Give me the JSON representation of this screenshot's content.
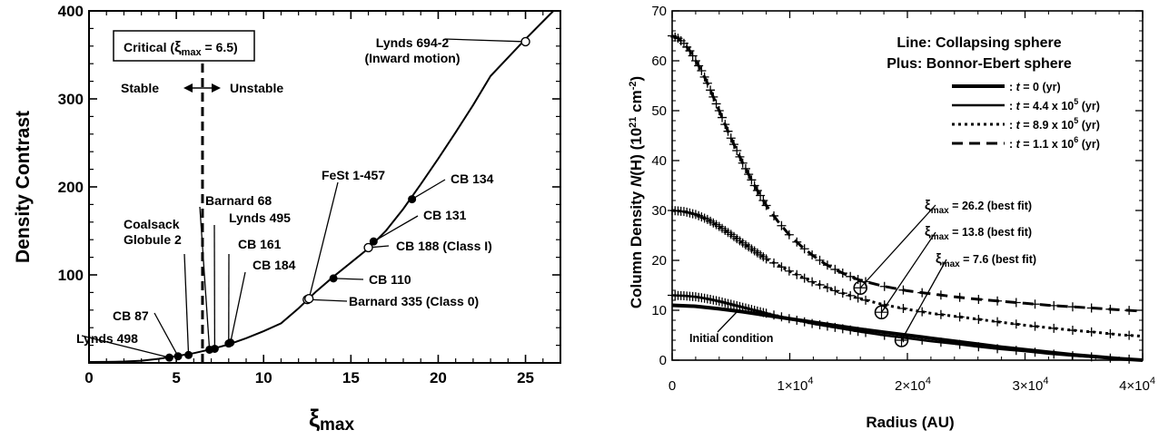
{
  "chart_data": [
    {
      "type": "line",
      "xlabel_main": "ξ",
      "xlabel_sub": "max",
      "ylabel": "Density Contrast",
      "xlim": [
        0,
        27
      ],
      "ylim": [
        0,
        400
      ],
      "xticks": [
        "0",
        "5",
        "10",
        "15",
        "20",
        "25"
      ],
      "yticks": [
        "100",
        "200",
        "300",
        "400"
      ],
      "critical_box": {
        "prefix": "Critical (",
        "xi": "ξ",
        "sub": "max",
        "suffix": "  = 6.5)"
      },
      "critical_x": 6.5,
      "stable_label": "Stable",
      "unstable_label": "Unstable",
      "curve": {
        "x": [
          0,
          1,
          2,
          3,
          4,
          5,
          6,
          7,
          8,
          9,
          10,
          11,
          12,
          13,
          14,
          15,
          16,
          17,
          18,
          19,
          20,
          21,
          22,
          23,
          24,
          25,
          26,
          26.6
        ],
        "y": [
          1,
          1.1,
          1.5,
          2.4,
          4.6,
          7.7,
          11,
          15.5,
          21,
          28,
          36,
          45,
          62,
          81,
          98,
          114,
          130,
          150,
          175,
          203,
          232,
          262,
          293,
          326,
          347,
          368,
          388,
          400
        ]
      },
      "objects": [
        {
          "name": "Lynds 498",
          "x": 4.6,
          "y": 6,
          "marker": "filled",
          "label_lines": [
            "Lynds 498"
          ]
        },
        {
          "name": "CB 87",
          "x": 5.1,
          "y": 7.5,
          "marker": "filled",
          "label_lines": [
            "CB 87"
          ]
        },
        {
          "name": "Coalsack Globule 2",
          "x": 5.7,
          "y": 9,
          "marker": "filled",
          "label_lines": [
            "Coalsack",
            "Globule 2"
          ]
        },
        {
          "name": "Barnard 68",
          "x": 6.9,
          "y": 15,
          "marker": "filled",
          "label_lines": [
            "Barnard 68"
          ]
        },
        {
          "name": "Lynds 495",
          "x": 7.2,
          "y": 16,
          "marker": "filled",
          "label_lines": [
            "Lynds 495"
          ]
        },
        {
          "name": "CB 161",
          "x": 8.0,
          "y": 22,
          "marker": "filled",
          "label_lines": [
            "CB 161"
          ]
        },
        {
          "name": "CB 184",
          "x": 8.1,
          "y": 23,
          "marker": "filled",
          "label_lines": [
            "CB 184"
          ]
        },
        {
          "name": "Barnard 335 (Class 0)",
          "x": 12.5,
          "y": 72,
          "marker": "open",
          "label_lines": [
            "Barnard 335 (Class 0)"
          ]
        },
        {
          "name": "FeSt 1-457",
          "x": 12.6,
          "y": 73,
          "marker": "open",
          "label_lines": [
            "FeSt 1-457"
          ]
        },
        {
          "name": "CB 110",
          "x": 14.0,
          "y": 96,
          "marker": "filled",
          "label_lines": [
            "CB 110"
          ]
        },
        {
          "name": "CB 188 (Class I)",
          "x": 16.0,
          "y": 131,
          "marker": "open",
          "label_lines": [
            "CB 188 (Class I)"
          ]
        },
        {
          "name": "CB 131",
          "x": 16.3,
          "y": 138,
          "marker": "filled",
          "label_lines": [
            "CB 131"
          ]
        },
        {
          "name": "CB 134",
          "x": 18.5,
          "y": 186,
          "marker": "filled",
          "label_lines": [
            "CB 134"
          ]
        },
        {
          "name": "Lynds 694-2 (Inward motion)",
          "x": 25.0,
          "y": 365,
          "marker": "open",
          "label_lines": [
            "Lynds 694-2",
            "(Inward motion)"
          ]
        }
      ]
    },
    {
      "type": "line",
      "xlabel": "Radius (AU)",
      "ylabel_prefix": "Column Density ",
      "ylabel_italic": "N",
      "ylabel_mid": "(H) (10",
      "ylabel_sup1": "21",
      "ylabel_unit": " cm",
      "ylabel_sup2": "-2",
      "ylabel_end": ")",
      "xlim": [
        0,
        40000
      ],
      "ylim": [
        0,
        70
      ],
      "xticks": [
        {
          "value": 0,
          "label": "0",
          "exp": ""
        },
        {
          "value": 10000,
          "label": "1×10",
          "exp": "4"
        },
        {
          "value": 20000,
          "label": "2×10",
          "exp": "4"
        },
        {
          "value": 30000,
          "label": "3×10",
          "exp": "4"
        },
        {
          "value": 40000,
          "label": "4×10",
          "exp": "4"
        }
      ],
      "yticks": [
        "0",
        "10",
        "20",
        "30",
        "40",
        "50",
        "60",
        "70"
      ],
      "legend_line1": "Line: Collapsing sphere",
      "legend_line2": "Plus: Bonnor-Ebert sphere",
      "legend_entries": [
        {
          "style": "solid-thick",
          "colon": ":",
          "t": "t",
          "text": " = 0 (yr)",
          "exp": "",
          "tail": ""
        },
        {
          "style": "solid",
          "colon": ":",
          "t": "t",
          "text": " = 4.4 x 10",
          "exp": "5",
          "tail": " (yr)"
        },
        {
          "style": "dotted",
          "colon": ":",
          "t": "t",
          "text": " = 8.9 x 10",
          "exp": "5",
          "tail": " (yr)"
        },
        {
          "style": "dashed",
          "colon": ":",
          "t": "t",
          "text": " = 1.1 x 10",
          "exp": "6",
          "tail": " (yr)"
        }
      ],
      "series": [
        {
          "style": "solid-thick",
          "x": [
            0,
            2000,
            4000,
            6000,
            8000,
            10000,
            12000,
            14000,
            16000,
            18000,
            20000,
            22000,
            24000,
            26000,
            28000,
            30000,
            32000,
            34000,
            36000,
            38000,
            40000
          ],
          "y": [
            11,
            10.8,
            10.3,
            9.7,
            9,
            8.3,
            7.6,
            6.9,
            6.2,
            5.6,
            5,
            4.4,
            3.8,
            3.2,
            2.6,
            2.1,
            1.6,
            1.1,
            0.7,
            0.3,
            0
          ]
        },
        {
          "style": "solid",
          "x": [
            0,
            1000,
            2000,
            3000,
            4000,
            6000,
            8000,
            10000,
            12000,
            14000,
            16000,
            18000,
            20000,
            22000,
            24000,
            26000,
            28000,
            30000,
            32000,
            34000,
            36000,
            38000,
            40000
          ],
          "y": [
            13,
            12.9,
            12.7,
            12.3,
            11.8,
            10.6,
            9.4,
            8.3,
            7.3,
            6.5,
            5.7,
            5,
            4.4,
            3.8,
            3.3,
            2.7,
            2.2,
            1.8,
            1.3,
            0.9,
            0.6,
            0.3,
            0.1
          ]
        },
        {
          "style": "dotted",
          "x": [
            0,
            1000,
            2000,
            3000,
            4000,
            5000,
            6000,
            8000,
            10000,
            12000,
            14000,
            16000,
            18000,
            20000,
            22000,
            24000,
            26000,
            28000,
            30000,
            32000,
            34000,
            36000,
            38000,
            40000
          ],
          "y": [
            30,
            29.8,
            29.2,
            28.2,
            26.8,
            25.2,
            23.5,
            20.3,
            17.8,
            15.6,
            13.8,
            12.3,
            11.1,
            10.2,
            9.4,
            8.8,
            8.2,
            7.6,
            7,
            6.5,
            6,
            5.6,
            5.1,
            4.8
          ]
        },
        {
          "style": "dashed",
          "x": [
            0,
            500,
            1000,
            1500,
            2000,
            2500,
            3000,
            4000,
            5000,
            6000,
            7000,
            8000,
            9000,
            10000,
            11000,
            12000,
            13000,
            14000,
            15000,
            16000,
            18000,
            20000,
            22000,
            24000,
            26000,
            28000,
            30000,
            32000,
            34000,
            36000,
            38000,
            40000
          ],
          "y": [
            65,
            64.5,
            63.5,
            62,
            60,
            58,
            55.5,
            50,
            44.5,
            39.5,
            35,
            31,
            27.8,
            25,
            22.8,
            20.9,
            19.3,
            18,
            16.9,
            16,
            14.8,
            13.9,
            13.3,
            12.7,
            12.2,
            11.8,
            11.4,
            11,
            10.7,
            10.4,
            10.1,
            9.8
          ]
        }
      ],
      "fits": [
        {
          "xi": "ξ",
          "sub": "max",
          "text": " = 26.2 (best fit)",
          "circle_x": 16000,
          "circle_y": 14.5
        },
        {
          "xi": "ξ",
          "sub": "max",
          "text": " = 13.8 (best fit)",
          "circle_x": 17800,
          "circle_y": 9.6
        },
        {
          "xi": "ξ",
          "sub": "max",
          "text": " = 7.6 (best fit)",
          "circle_x": 19500,
          "circle_y": 4.0
        }
      ],
      "initial_condition_label": "Initial condition"
    }
  ]
}
